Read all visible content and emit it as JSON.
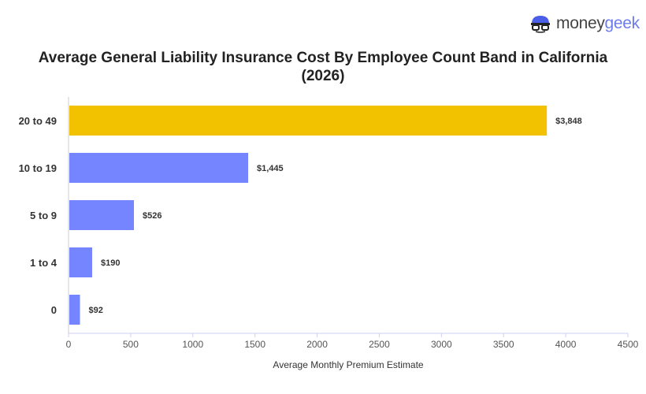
{
  "title": "Average General Liability Insurance Cost By Employee Count Band in California (2026)",
  "logo": {
    "part1": "money",
    "part2": "geek"
  },
  "chart_data": {
    "type": "bar",
    "orientation": "horizontal",
    "title": "Average General Liability Insurance Cost By Employee Count Band in California (2026)",
    "xlabel": "Average Monthly Premium Estimate",
    "ylabel": "",
    "categories": [
      "20 to 49",
      "10 to 19",
      "5 to 9",
      "1 to 4",
      "0"
    ],
    "values": [
      3848,
      1445,
      526,
      190,
      92
    ],
    "data_labels": [
      "$3,848",
      "$1,445",
      "$526",
      "$190",
      "$92"
    ],
    "highlight_colors": [
      "#F2C200",
      "#7585FF",
      "#7585FF",
      "#7585FF",
      "#7585FF"
    ],
    "xlim": [
      0,
      4500
    ],
    "xticks": [
      0,
      500,
      1000,
      1500,
      2000,
      2500,
      3000,
      3500,
      4000,
      4500
    ],
    "grid": false
  }
}
